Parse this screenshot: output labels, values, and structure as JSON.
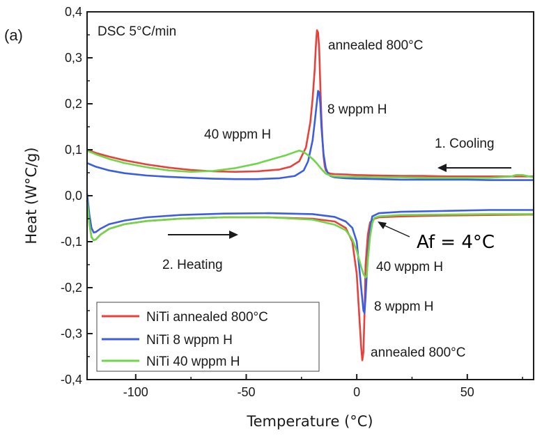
{
  "panel_label": "(a)",
  "chart_data": {
    "type": "line",
    "title": "DSC 5°C/min",
    "xlabel": "Temperature (°C)",
    "ylabel": "Heat (W°C/g)",
    "xlim": [
      -122,
      80
    ],
    "ylim": [
      -0.4,
      0.4
    ],
    "x_ticks": [
      -100,
      -50,
      0,
      50
    ],
    "x_tick_labels": [
      "-100",
      "-50",
      "0",
      "50"
    ],
    "y_ticks": [
      0.4,
      0.3,
      0.2,
      0.1,
      0.0,
      -0.1,
      -0.2,
      -0.3,
      -0.4
    ],
    "y_tick_labels": [
      "0,4",
      "0,3",
      "0,2",
      "0,1",
      "0,0",
      "-0,1",
      "-0,2",
      "-0,3",
      "-0,4"
    ],
    "grid": false,
    "legend_position": "bottom-left",
    "colors": {
      "annealed": "#e8403a",
      "h8": "#3b5de0",
      "h40": "#6fd64a"
    },
    "series": [
      {
        "name": "NiTi annealed 800°C",
        "color_key": "annealed",
        "cooling": {
          "x": [
            -122,
            -118,
            -112,
            -105,
            -95,
            -85,
            -75,
            -65,
            -55,
            -45,
            -35,
            -30,
            -26,
            -23,
            -21,
            -20,
            -19,
            -18.5,
            -18,
            -17.5,
            -17,
            -16.5,
            -16,
            -15.5,
            -15,
            -14.5,
            -14,
            -13,
            -12,
            -10,
            -5,
            0,
            10,
            20,
            30,
            40,
            50,
            60,
            70,
            80
          ],
          "y": [
            0.1,
            0.093,
            0.085,
            0.077,
            0.068,
            0.061,
            0.056,
            0.053,
            0.052,
            0.053,
            0.057,
            0.063,
            0.075,
            0.105,
            0.16,
            0.21,
            0.275,
            0.325,
            0.36,
            0.355,
            0.32,
            0.24,
            0.17,
            0.12,
            0.085,
            0.065,
            0.055,
            0.05,
            0.048,
            0.047,
            0.046,
            0.045,
            0.044,
            0.043,
            0.043,
            0.042,
            0.042,
            0.042,
            0.042,
            0.042
          ]
        },
        "heating": {
          "x": [
            -122,
            -121,
            -120,
            -119,
            -118,
            -116,
            -112,
            -105,
            -95,
            -80,
            -60,
            -40,
            -20,
            -10,
            -5,
            -2,
            0,
            1,
            2,
            2.5,
            3,
            3.5,
            4,
            5,
            6,
            8,
            10,
            20,
            40,
            60,
            80
          ],
          "y": [
            -0.01,
            -0.06,
            -0.09,
            -0.097,
            -0.095,
            -0.085,
            -0.072,
            -0.062,
            -0.055,
            -0.05,
            -0.047,
            -0.047,
            -0.05,
            -0.056,
            -0.07,
            -0.1,
            -0.17,
            -0.25,
            -0.33,
            -0.358,
            -0.34,
            -0.26,
            -0.15,
            -0.085,
            -0.058,
            -0.05,
            -0.047,
            -0.045,
            -0.043,
            -0.042,
            -0.041
          ]
        }
      },
      {
        "name": "NiTi 8 wppm H",
        "color_key": "h8",
        "cooling": {
          "x": [
            -122,
            -118,
            -112,
            -105,
            -95,
            -85,
            -75,
            -65,
            -55,
            -45,
            -35,
            -28,
            -24,
            -22,
            -20,
            -19,
            -18,
            -17.5,
            -17,
            -16.5,
            -16,
            -15,
            -14,
            -13,
            -12,
            -10,
            -5,
            0,
            10,
            20,
            30,
            40,
            50,
            60,
            70,
            80
          ],
          "y": [
            0.071,
            0.063,
            0.055,
            0.049,
            0.044,
            0.041,
            0.039,
            0.037,
            0.036,
            0.036,
            0.038,
            0.043,
            0.055,
            0.075,
            0.12,
            0.16,
            0.205,
            0.228,
            0.225,
            0.2,
            0.15,
            0.09,
            0.06,
            0.048,
            0.043,
            0.04,
            0.038,
            0.037,
            0.036,
            0.035,
            0.035,
            0.035,
            0.035,
            0.034,
            0.034,
            0.034
          ]
        },
        "heating": {
          "x": [
            -122,
            -121,
            -120,
            -119,
            -118,
            -116,
            -112,
            -105,
            -95,
            -80,
            -60,
            -40,
            -20,
            -10,
            -5,
            -2,
            0,
            1,
            2,
            3,
            3.5,
            4,
            5,
            6,
            7,
            10,
            20,
            40,
            60,
            80
          ],
          "y": [
            0.005,
            -0.04,
            -0.07,
            -0.08,
            -0.079,
            -0.072,
            -0.062,
            -0.054,
            -0.047,
            -0.042,
            -0.039,
            -0.038,
            -0.04,
            -0.046,
            -0.056,
            -0.07,
            -0.1,
            -0.15,
            -0.2,
            -0.25,
            -0.255,
            -0.22,
            -0.13,
            -0.07,
            -0.045,
            -0.038,
            -0.035,
            -0.033,
            -0.031,
            -0.031
          ]
        }
      },
      {
        "name": "NiTi 40 wppm H",
        "color_key": "h40",
        "cooling": {
          "x": [
            -122,
            -118,
            -112,
            -105,
            -95,
            -85,
            -75,
            -65,
            -55,
            -45,
            -38,
            -32,
            -28,
            -26,
            -24,
            -22,
            -20,
            -18,
            -16,
            -14,
            -12,
            -10,
            -5,
            0,
            10,
            20,
            30,
            40,
            50,
            60,
            70,
            72,
            75,
            78,
            80
          ],
          "y": [
            0.098,
            0.09,
            0.08,
            0.071,
            0.062,
            0.055,
            0.052,
            0.054,
            0.06,
            0.07,
            0.08,
            0.088,
            0.095,
            0.098,
            0.095,
            0.088,
            0.08,
            0.07,
            0.058,
            0.048,
            0.044,
            0.042,
            0.041,
            0.041,
            0.04,
            0.04,
            0.039,
            0.039,
            0.039,
            0.039,
            0.042,
            0.045,
            0.045,
            0.042,
            0.04
          ]
        },
        "heating": {
          "x": [
            -122,
            -121,
            -120,
            -119,
            -118,
            -116,
            -112,
            -105,
            -95,
            -80,
            -60,
            -40,
            -20,
            -10,
            -5,
            -2,
            0,
            2,
            3,
            4,
            4.5,
            5,
            6,
            7,
            8,
            10,
            20,
            40,
            60,
            80
          ],
          "y": [
            -0.01,
            -0.06,
            -0.09,
            -0.097,
            -0.095,
            -0.085,
            -0.072,
            -0.062,
            -0.055,
            -0.05,
            -0.047,
            -0.047,
            -0.052,
            -0.063,
            -0.075,
            -0.095,
            -0.12,
            -0.155,
            -0.17,
            -0.178,
            -0.175,
            -0.14,
            -0.09,
            -0.06,
            -0.048,
            -0.045,
            -0.042,
            -0.041,
            -0.04,
            -0.04
          ]
        }
      }
    ],
    "annotations": [
      {
        "text": "DSC 5°C/min",
        "kind": "title"
      },
      {
        "text": "annealed 800°C"
      },
      {
        "text": "8 wppm H"
      },
      {
        "text": "40 wppm H"
      },
      {
        "text": "1. Cooling"
      },
      {
        "text": "2. Heating"
      },
      {
        "text": "Af = 4°C"
      },
      {
        "text": "40 wppm H"
      },
      {
        "text": "8 wppm H"
      },
      {
        "text": "annealed 800°C"
      }
    ]
  }
}
